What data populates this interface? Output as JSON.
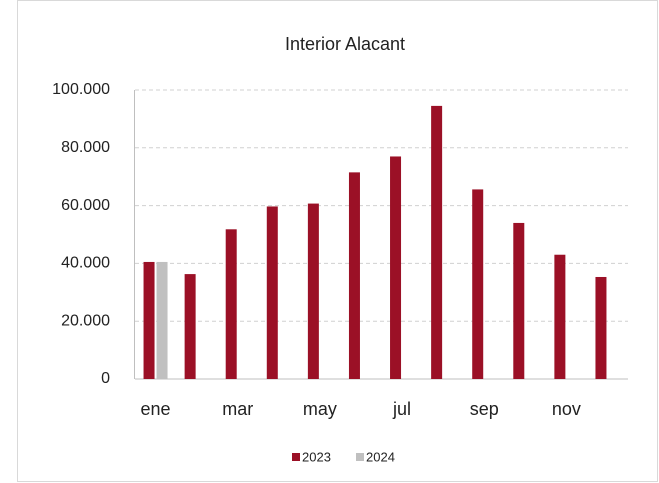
{
  "chart_data": {
    "type": "bar",
    "title": "Interior Alacant",
    "categories": [
      "ene",
      null,
      "mar",
      null,
      "may",
      null,
      "jul",
      null,
      "sep",
      null,
      "nov",
      null
    ],
    "series": [
      {
        "name": "2023",
        "color": "#9b1026",
        "values": [
          40500,
          36300,
          51800,
          59700,
          60700,
          71500,
          77000,
          94500,
          65600,
          54000,
          43000,
          35300
        ]
      },
      {
        "name": "2024",
        "color": "#c0c0c0",
        "values": [
          40500,
          null,
          null,
          null,
          null,
          null,
          null,
          null,
          null,
          null,
          null,
          null
        ]
      }
    ],
    "ylim": [
      0,
      100000
    ],
    "yticks": [
      0,
      {
        "value": 20000,
        "label": "20.000"
      },
      {
        "value": 40000,
        "label": "40.000"
      },
      {
        "value": 60000,
        "label": "60.000"
      },
      {
        "value": 80000,
        "label": "80.000"
      },
      {
        "value": 100000,
        "label": "100.000"
      }
    ],
    "grid": true,
    "legend": "bottom"
  }
}
